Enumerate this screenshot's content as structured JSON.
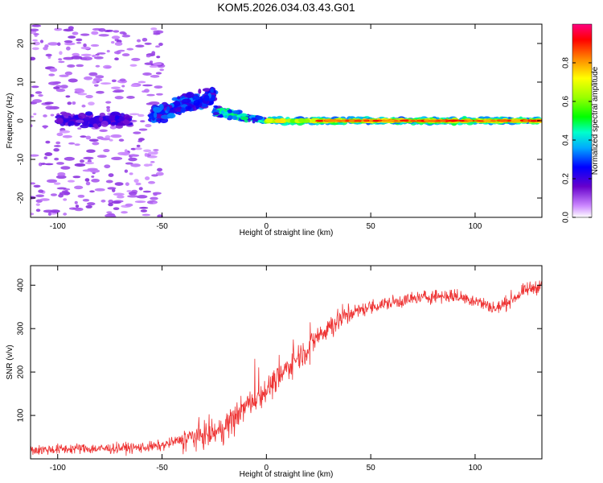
{
  "title": "KOM5.2026.034.03.43.G01",
  "chart_data": [
    {
      "type": "heatmap",
      "name": "spectrogram",
      "xlabel": "Height of straight line (km)",
      "ylabel": "Frequency (Hz)",
      "xlim": [
        -113,
        132
      ],
      "ylim": [
        -25,
        25
      ],
      "xticks": [
        -100,
        -50,
        0,
        50,
        100
      ],
      "yticks": [
        -20,
        -10,
        0,
        10,
        20
      ],
      "xtick_labels": [
        "-100",
        "-50",
        "0",
        "50",
        "100"
      ],
      "ytick_labels": [
        "-20",
        "-10",
        "0",
        "10",
        "20"
      ],
      "colorbar": {
        "label": "Normalized spectral amplitude",
        "range": [
          0,
          1
        ],
        "ticks": [
          0.0,
          0.2,
          0.4,
          0.6,
          0.8
        ],
        "tick_labels": [
          "0.0",
          "0.2",
          "0.4",
          "0.6",
          "0.8"
        ],
        "colors": [
          "#ffffff",
          "#cc88ff",
          "#6600cc",
          "#0000ff",
          "#00ccff",
          "#00ff88",
          "#66ff00",
          "#ffff00",
          "#ff8800",
          "#ff0000",
          "#ff0066"
        ]
      },
      "features": [
        {
          "desc": "scattered low-amplitude noise",
          "x_range": [
            -113,
            -50
          ],
          "freq_range": [
            -25,
            25
          ],
          "amplitude": 0.05
        },
        {
          "desc": "noise band",
          "x_range": [
            -100,
            -65
          ],
          "freq_center": 0,
          "amplitude": 0.2
        },
        {
          "desc": "rising blob",
          "x_range": [
            -55,
            -25
          ],
          "freq_center": 4,
          "amplitude": 0.25
        },
        {
          "desc": "narrowing signal",
          "x_range": [
            -25,
            0
          ],
          "freq_center": 0.5,
          "amplitude": 0.35
        },
        {
          "desc": "carrier line",
          "x_range": [
            0,
            132
          ],
          "freq_center": 0,
          "amplitude": 0.85
        }
      ]
    },
    {
      "type": "line",
      "name": "snr",
      "xlabel": "Height of straight line (km)",
      "ylabel": "SNR (v/v)",
      "xlim": [
        -113,
        132
      ],
      "ylim": [
        0,
        445
      ],
      "xticks": [
        -100,
        -50,
        0,
        50,
        100
      ],
      "yticks": [
        100,
        200,
        300,
        400
      ],
      "xtick_labels": [
        "-100",
        "-50",
        "0",
        "50",
        "100"
      ],
      "ytick_labels": [
        "100",
        "200",
        "300",
        "400"
      ],
      "color": "#ee3333",
      "series": [
        {
          "name": "SNR",
          "x": [
            -113,
            -100,
            -90,
            -80,
            -70,
            -60,
            -50,
            -45,
            -40,
            -35,
            -30,
            -25,
            -20,
            -15,
            -10,
            -5,
            0,
            5,
            10,
            15,
            20,
            25,
            30,
            35,
            40,
            50,
            60,
            70,
            80,
            90,
            100,
            110,
            115,
            120,
            125,
            132
          ],
          "y": [
            20,
            22,
            24,
            23,
            25,
            26,
            30,
            38,
            45,
            50,
            55,
            60,
            70,
            100,
            120,
            140,
            160,
            180,
            210,
            235,
            255,
            285,
            305,
            320,
            335,
            350,
            360,
            368,
            375,
            375,
            365,
            345,
            360,
            375,
            390,
            400
          ]
        }
      ]
    }
  ]
}
